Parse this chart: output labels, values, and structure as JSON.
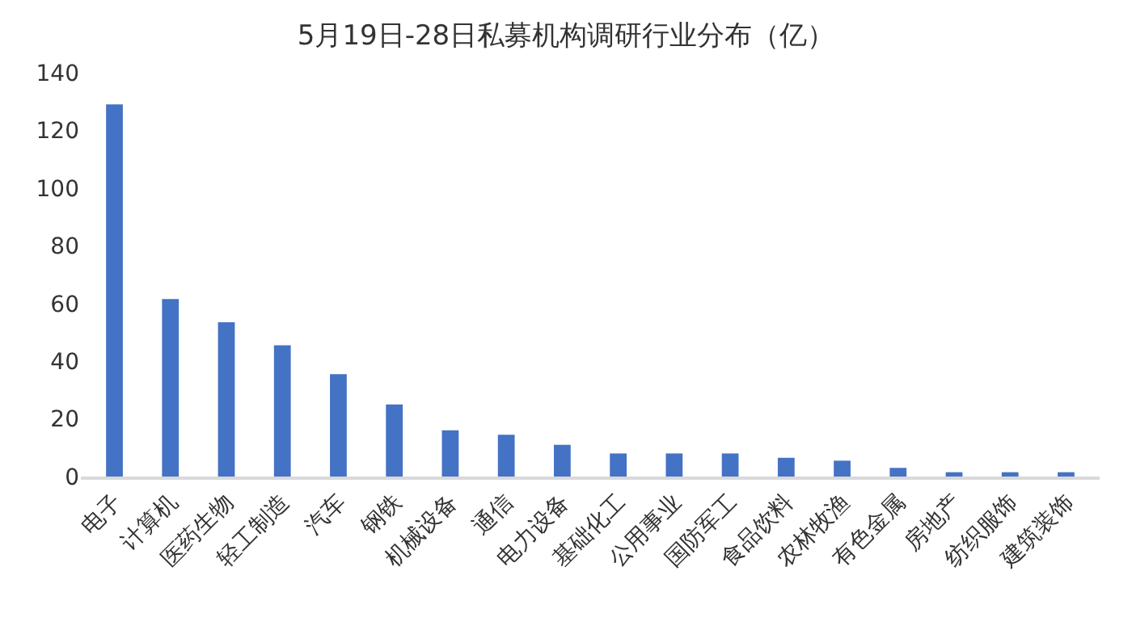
{
  "chart_data": {
    "type": "bar",
    "title": "5月19日-28日私募机构调研行业分布（亿）",
    "categories": [
      "电子",
      "计算机",
      "医药生物",
      "轻工制造",
      "汽车",
      "钢铁",
      "机械设备",
      "通信",
      "电力设备",
      "基础化工",
      "公用事业",
      "国防军工",
      "食品饮料",
      "农林牧渔",
      "有色金属",
      "房地产",
      "纺织服饰",
      "建筑装饰"
    ],
    "values": [
      129,
      61.5,
      53.5,
      45.5,
      35.5,
      25,
      16,
      14.5,
      11,
      8,
      8,
      8,
      6.5,
      5.5,
      3,
      1.5,
      1.5,
      1.5
    ],
    "color": "#4472c4",
    "ylim": [
      0,
      140
    ],
    "yticks": [
      0,
      20,
      40,
      60,
      80,
      100,
      120,
      140
    ],
    "grid": false
  }
}
